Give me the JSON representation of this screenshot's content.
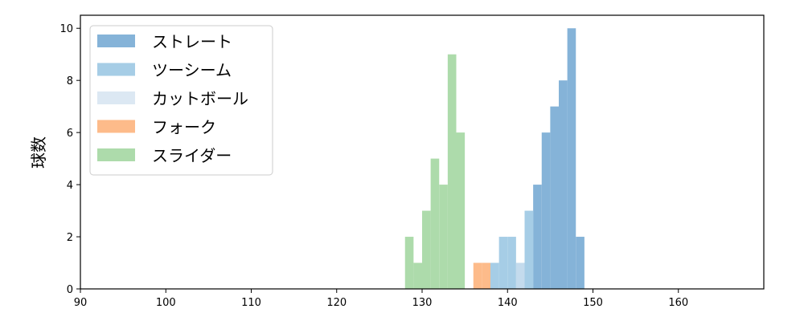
{
  "chart_data": {
    "type": "bar",
    "ylabel": "球数",
    "xlabel": "",
    "xlim": [
      90,
      170
    ],
    "ylim": [
      0,
      10.5
    ],
    "xticks": [
      90,
      100,
      110,
      120,
      130,
      140,
      150,
      160
    ],
    "yticks": [
      0,
      2,
      4,
      6,
      8,
      10
    ],
    "grid": false,
    "legend_position": "top-left",
    "bin_width": 1,
    "series": [
      {
        "name": "ストレート",
        "color": "#85b3d8",
        "bins": [
          [
            143,
            4
          ],
          [
            144,
            6
          ],
          [
            145,
            7
          ],
          [
            146,
            8
          ],
          [
            147,
            10
          ],
          [
            148,
            2
          ]
        ]
      },
      {
        "name": "ツーシーム",
        "color": "#a6cde6",
        "bins": [
          [
            138,
            1
          ],
          [
            139,
            2
          ],
          [
            140,
            2
          ],
          [
            141,
            1
          ],
          [
            142,
            3
          ]
        ]
      },
      {
        "name": "カットボール",
        "color": "#dce8f3",
        "bins": [
          [
            141,
            1
          ]
        ]
      },
      {
        "name": "フォーク",
        "color": "#fdbb8a",
        "bins": [
          [
            136,
            1
          ],
          [
            137,
            1
          ]
        ]
      },
      {
        "name": "スライダー",
        "color": "#addbab",
        "bins": [
          [
            128,
            2
          ],
          [
            129,
            1
          ],
          [
            130,
            3
          ],
          [
            131,
            5
          ],
          [
            132,
            4
          ],
          [
            133,
            9
          ],
          [
            134,
            6
          ]
        ]
      }
    ]
  }
}
